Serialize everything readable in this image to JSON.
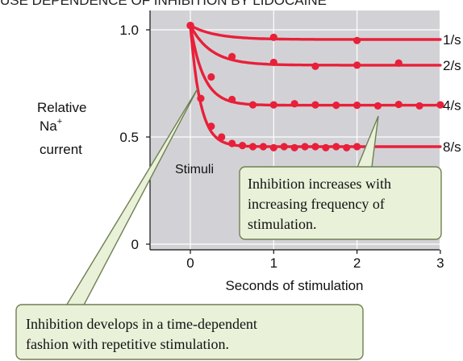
{
  "chart_data": {
    "type": "scatter",
    "title": "USE DEPENDENCE OF INHIBITION BY LIDOCAINE",
    "xlabel": "Seconds of stimulation",
    "ylabel_lines": [
      "Relative",
      "Na",
      "current"
    ],
    "ylabel_superscript": "+",
    "xlim": [
      -0.5,
      3
    ],
    "ylim": [
      0,
      1.05
    ],
    "x_ticks": [
      0,
      1,
      2,
      3
    ],
    "x_tick_labels": [
      "0",
      "1",
      "2",
      "3"
    ],
    "y_ticks": [
      0,
      0.5,
      1.0
    ],
    "y_tick_labels": [
      "0",
      "0.5",
      "1.0"
    ],
    "grid": true,
    "series": [
      {
        "name": "1/s",
        "x": [
          0,
          1,
          2
        ],
        "y": [
          1.02,
          0.965,
          0.95
        ],
        "curve": {
          "asymptote": 0.955,
          "tau": 0.3
        }
      },
      {
        "name": "2/s",
        "x": [
          0,
          0.5,
          1,
          1.5,
          2,
          2.5
        ],
        "y": [
          1.02,
          0.875,
          0.848,
          0.83,
          0.835,
          0.845
        ],
        "curve": {
          "asymptote": 0.835,
          "tau": 0.25
        }
      },
      {
        "name": "4/s",
        "x": [
          0,
          0.25,
          0.5,
          0.75,
          1,
          1.25,
          1.5,
          1.75,
          2,
          2.25,
          2.5,
          2.75,
          3
        ],
        "y": [
          1.02,
          0.78,
          0.675,
          0.65,
          0.65,
          0.655,
          0.65,
          0.648,
          0.648,
          0.645,
          0.652,
          0.645,
          0.65
        ],
        "curve": {
          "asymptote": 0.648,
          "tau": 0.16
        }
      },
      {
        "name": "8/s",
        "x": [
          0,
          0.125,
          0.25,
          0.375,
          0.5,
          0.625,
          0.75,
          0.875,
          1.0,
          1.125,
          1.25,
          1.375,
          1.5,
          1.625,
          1.75,
          1.875,
          2.0
        ],
        "y": [
          1.02,
          0.68,
          0.55,
          0.5,
          0.47,
          0.46,
          0.455,
          0.455,
          0.45,
          0.455,
          0.45,
          0.455,
          0.455,
          0.45,
          0.455,
          0.45,
          0.455
        ],
        "curve": {
          "asymptote": 0.455,
          "tau": 0.12
        }
      }
    ],
    "annotations": {
      "stimuli_label": "Stimuli",
      "callout_frequency_lines": [
        "Inhibition increases with",
        "increasing frequency of",
        "stimulation."
      ],
      "callout_time_lines": [
        "Inhibition develops in a time-dependent",
        "fashion with repetitive stimulation."
      ]
    }
  },
  "colors": {
    "plot_background": "#d2d2d6",
    "series": "#e8203a",
    "callout_fill": "#e9f1d9",
    "callout_border": "#6f7f52"
  }
}
